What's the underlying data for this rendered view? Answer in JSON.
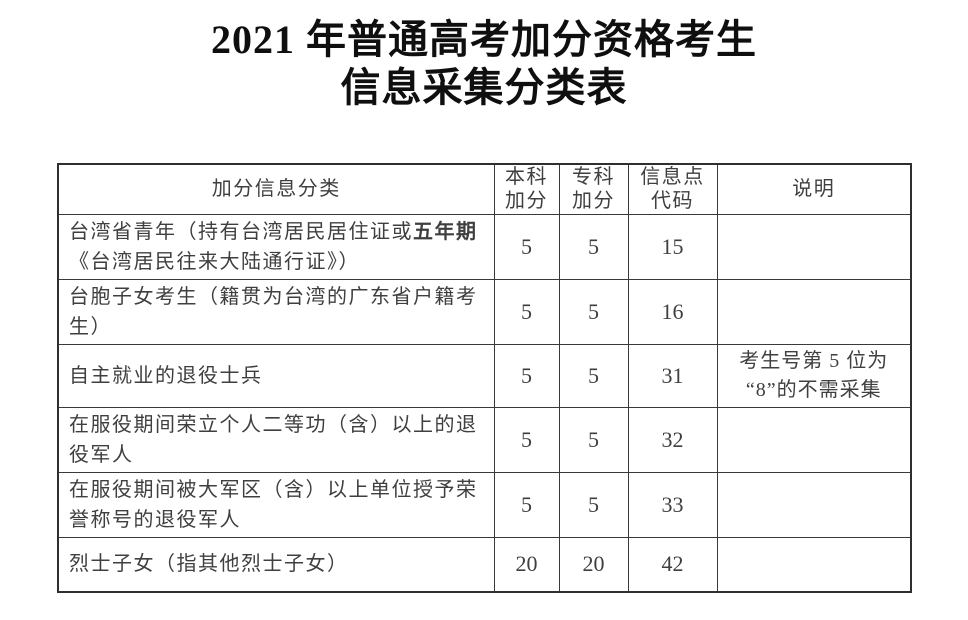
{
  "colors": {
    "background": "#ffffff",
    "title_text": "#0f0f0f",
    "table_text": "#3f3f3f",
    "table_border": "#2f2f2f"
  },
  "title": {
    "line1": "2021 年普通高考加分资格考生",
    "line2": "信息采集分类表"
  },
  "table": {
    "headers": {
      "category": "加分信息分类",
      "undergrad_line1": "本科",
      "undergrad_line2": "加分",
      "specialist_line1": "专科",
      "specialist_line2": "加分",
      "code_line1": "信息点",
      "code_line2": "代码",
      "note": "说明"
    },
    "rows": [
      {
        "category_prefix": "台湾省青年（持有台湾居民居住证或",
        "category_bold": "五年期",
        "category_suffix": "《台湾居民往来大陆通行证》）",
        "undergrad": "5",
        "specialist": "5",
        "code": "15",
        "note_line1": "",
        "note_line2": ""
      },
      {
        "category_prefix": "台胞子女考生（籍贯为台湾的广东省户籍考生）",
        "category_bold": "",
        "category_suffix": "",
        "undergrad": "5",
        "specialist": "5",
        "code": "16",
        "note_line1": "",
        "note_line2": ""
      },
      {
        "category_prefix": "自主就业的退役士兵",
        "category_bold": "",
        "category_suffix": "",
        "undergrad": "5",
        "specialist": "5",
        "code": "31",
        "note_line1": "考生号第 5 位为",
        "note_line2": "“8”的不需采集"
      },
      {
        "category_prefix": "在服役期间荣立个人二等功（含）以上的退役军人",
        "category_bold": "",
        "category_suffix": "",
        "undergrad": "5",
        "specialist": "5",
        "code": "32",
        "note_line1": "",
        "note_line2": ""
      },
      {
        "category_prefix": "在服役期间被大军区（含）以上单位授予荣誉称号的退役军人",
        "category_bold": "",
        "category_suffix": "",
        "undergrad": "5",
        "specialist": "5",
        "code": "33",
        "note_line1": "",
        "note_line2": ""
      },
      {
        "category_prefix": "烈士子女（指其他烈士子女）",
        "category_bold": "",
        "category_suffix": "",
        "undergrad": "20",
        "specialist": "20",
        "code": "42",
        "note_line1": "",
        "note_line2": ""
      }
    ]
  }
}
